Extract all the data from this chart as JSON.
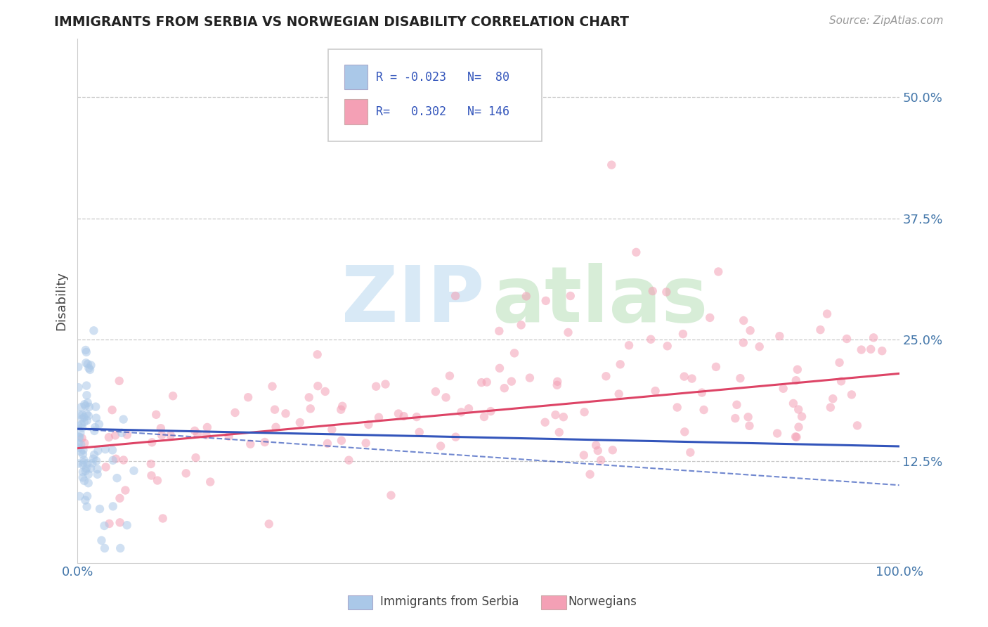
{
  "title": "IMMIGRANTS FROM SERBIA VS NORWEGIAN DISABILITY CORRELATION CHART",
  "source_text": "Source: ZipAtlas.com",
  "ylabel": "Disability",
  "xlim": [
    0.0,
    1.0
  ],
  "ylim": [
    0.02,
    0.56
  ],
  "yticks": [
    0.125,
    0.25,
    0.375,
    0.5
  ],
  "ytick_labels": [
    "12.5%",
    "25.0%",
    "37.5%",
    "50.0%"
  ],
  "xticks": [
    0.0,
    1.0
  ],
  "xtick_labels": [
    "0.0%",
    "100.0%"
  ],
  "background_color": "#ffffff",
  "grid_color": "#bbbbbb",
  "legend_R1": "-0.023",
  "legend_N1": "80",
  "legend_R2": "0.302",
  "legend_N2": "146",
  "serbia_color": "#aac8e8",
  "serbian_line_color": "#3355bb",
  "norwegian_color": "#f4a0b5",
  "norwegian_line_color": "#dd4466",
  "serbia_alpha": 0.55,
  "norwegian_alpha": 0.55,
  "marker_size": 80,
  "tick_color": "#4477aa",
  "label_color": "#444444",
  "serbia_line_y0": 0.158,
  "serbia_line_y1": 0.14,
  "norwegian_line_y0": 0.138,
  "norwegian_line_y1": 0.215
}
